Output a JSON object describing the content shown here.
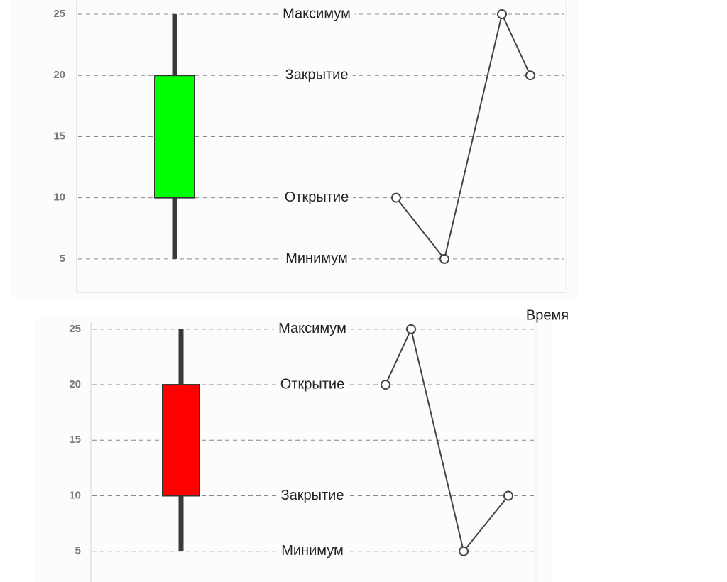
{
  "chart_data": [
    {
      "type": "candlestick",
      "open": 10,
      "high": 25,
      "low": 5,
      "close": 20,
      "color": "#00ff00",
      "level_labels": {
        "high": "Максимум",
        "close": "Закрытие",
        "open": "Открытие",
        "low": "Минимум"
      },
      "xlabel": "Время",
      "ylim": [
        2.5,
        26
      ],
      "yticks": [
        5,
        10,
        15,
        20,
        25
      ],
      "grid": true
    },
    {
      "type": "candlestick",
      "open": 20,
      "high": 25,
      "low": 5,
      "close": 10,
      "color": "#ff0000",
      "level_labels": {
        "high": "Максимум",
        "open": "Открытие",
        "close": "Закрытие",
        "low": "Минимум"
      },
      "ylim": [
        3,
        25.5
      ],
      "yticks": [
        5,
        10,
        15,
        20,
        25
      ],
      "grid": true
    }
  ]
}
